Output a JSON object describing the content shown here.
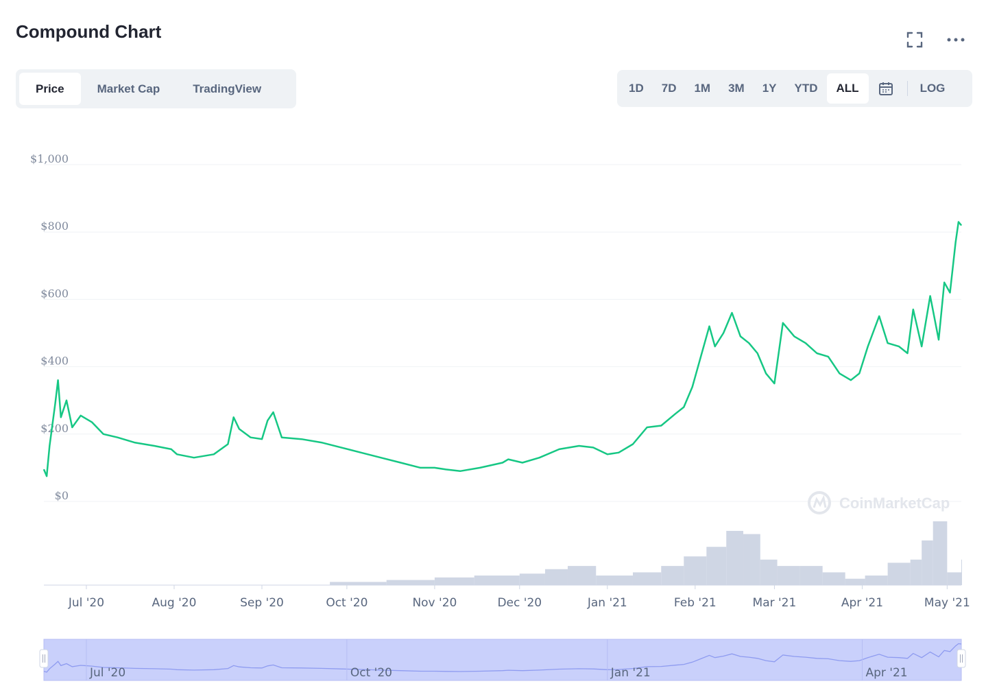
{
  "header": {
    "title": "Compound Chart",
    "expand_icon": "fullscreen-icon",
    "more_icon": "more-horizontal-icon"
  },
  "tabs": [
    {
      "label": "Price",
      "active": true
    },
    {
      "label": "Market Cap",
      "active": false
    },
    {
      "label": "TradingView",
      "active": false
    }
  ],
  "ranges": [
    {
      "label": "1D",
      "active": false
    },
    {
      "label": "7D",
      "active": false
    },
    {
      "label": "1M",
      "active": false
    },
    {
      "label": "3M",
      "active": false
    },
    {
      "label": "1Y",
      "active": false
    },
    {
      "label": "YTD",
      "active": false
    },
    {
      "label": "ALL",
      "active": true
    }
  ],
  "calendar_icon": "calendar-icon",
  "log_label": "LOG",
  "watermark": "CoinMarketCap",
  "colors": {
    "line": "#16c784",
    "volume": "#cfd6e4",
    "grid": "#eff2f5",
    "navigator_fill": "#c9d0fb",
    "navigator_line": "#8e9bf0"
  },
  "chart_data": {
    "type": "line",
    "title": "Compound Chart",
    "x_range": [
      "2020-06-16",
      "2021-05-06"
    ],
    "ylim": [
      0,
      1000
    ],
    "y_ticks": [
      "$1,000",
      "$800",
      "$600",
      "$400",
      "$200",
      "$0"
    ],
    "y_tick_values": [
      1000,
      800,
      600,
      400,
      200,
      0
    ],
    "x_ticks": [
      "Jul '20",
      "Aug '20",
      "Sep '20",
      "Oct '20",
      "Nov '20",
      "Dec '20",
      "Jan '21",
      "Feb '21",
      "Mar '21",
      "Apr '21",
      "May '21"
    ],
    "x_tick_dates": [
      "2020-07-01",
      "2020-08-01",
      "2020-09-01",
      "2020-10-01",
      "2020-11-01",
      "2020-12-01",
      "2021-01-01",
      "2021-02-01",
      "2021-03-01",
      "2021-04-01",
      "2021-05-01"
    ],
    "grid": true,
    "series": [
      {
        "x": [
          "2020-06-16",
          "2020-06-17",
          "2020-06-18",
          "2020-06-20",
          "2020-06-21",
          "2020-06-22",
          "2020-06-24",
          "2020-06-26",
          "2020-06-29",
          "2020-07-03",
          "2020-07-07",
          "2020-07-12",
          "2020-07-18",
          "2020-07-25",
          "2020-07-31",
          "2020-08-02",
          "2020-08-08",
          "2020-08-15",
          "2020-08-20",
          "2020-08-22",
          "2020-08-24",
          "2020-08-28",
          "2020-09-01",
          "2020-09-03",
          "2020-09-05",
          "2020-09-08",
          "2020-09-15",
          "2020-09-22",
          "2020-09-29",
          "2020-10-06",
          "2020-10-13",
          "2020-10-20",
          "2020-10-27",
          "2020-11-01",
          "2020-11-05",
          "2020-11-10",
          "2020-11-17",
          "2020-11-25",
          "2020-11-27",
          "2020-12-02",
          "2020-12-08",
          "2020-12-15",
          "2020-12-22",
          "2020-12-27",
          "2021-01-01",
          "2021-01-05",
          "2021-01-10",
          "2021-01-15",
          "2021-01-20",
          "2021-01-25",
          "2021-01-28",
          "2021-01-31",
          "2021-02-03",
          "2021-02-06",
          "2021-02-08",
          "2021-02-11",
          "2021-02-14",
          "2021-02-17",
          "2021-02-20",
          "2021-02-23",
          "2021-02-26",
          "2021-03-01",
          "2021-03-04",
          "2021-03-08",
          "2021-03-12",
          "2021-03-16",
          "2021-03-20",
          "2021-03-24",
          "2021-03-28",
          "2021-03-31",
          "2021-04-03",
          "2021-04-07",
          "2021-04-10",
          "2021-04-14",
          "2021-04-17",
          "2021-04-19",
          "2021-04-22",
          "2021-04-25",
          "2021-04-28",
          "2021-04-30",
          "2021-05-02",
          "2021-05-04",
          "2021-05-05",
          "2021-05-06"
        ],
        "y": [
          95,
          75,
          165,
          290,
          360,
          250,
          300,
          220,
          255,
          235,
          200,
          190,
          175,
          165,
          155,
          140,
          130,
          140,
          170,
          250,
          215,
          190,
          185,
          240,
          265,
          190,
          185,
          175,
          160,
          145,
          130,
          115,
          100,
          100,
          95,
          90,
          100,
          115,
          125,
          115,
          130,
          155,
          165,
          160,
          140,
          145,
          170,
          220,
          225,
          260,
          280,
          340,
          430,
          520,
          460,
          500,
          560,
          490,
          470,
          440,
          380,
          350,
          530,
          490,
          470,
          440,
          430,
          380,
          360,
          380,
          460,
          550,
          470,
          460,
          440,
          570,
          460,
          610,
          480,
          650,
          620,
          770,
          830,
          820
        ]
      }
    ],
    "volume": {
      "x": [
        "2020-09-25",
        "2020-10-15",
        "2020-11-01",
        "2020-11-15",
        "2020-12-01",
        "2020-12-10",
        "2020-12-18",
        "2020-12-28",
        "2021-01-10",
        "2021-01-20",
        "2021-01-28",
        "2021-02-05",
        "2021-02-12",
        "2021-02-18",
        "2021-02-24",
        "2021-03-02",
        "2021-03-10",
        "2021-03-18",
        "2021-03-26",
        "2021-04-02",
        "2021-04-10",
        "2021-04-18",
        "2021-04-22",
        "2021-04-26",
        "2021-05-01",
        "2021-05-06"
      ],
      "y": [
        5,
        8,
        12,
        15,
        18,
        25,
        30,
        15,
        20,
        30,
        45,
        60,
        85,
        80,
        40,
        30,
        30,
        20,
        10,
        15,
        35,
        40,
        70,
        100,
        20,
        40
      ]
    }
  },
  "navigator": {
    "x_ticks": [
      "Jul '20",
      "Oct '20",
      "Jan '21",
      "Apr '21"
    ],
    "x_tick_dates": [
      "2020-07-01",
      "2020-10-01",
      "2021-01-01",
      "2021-04-01"
    ]
  }
}
